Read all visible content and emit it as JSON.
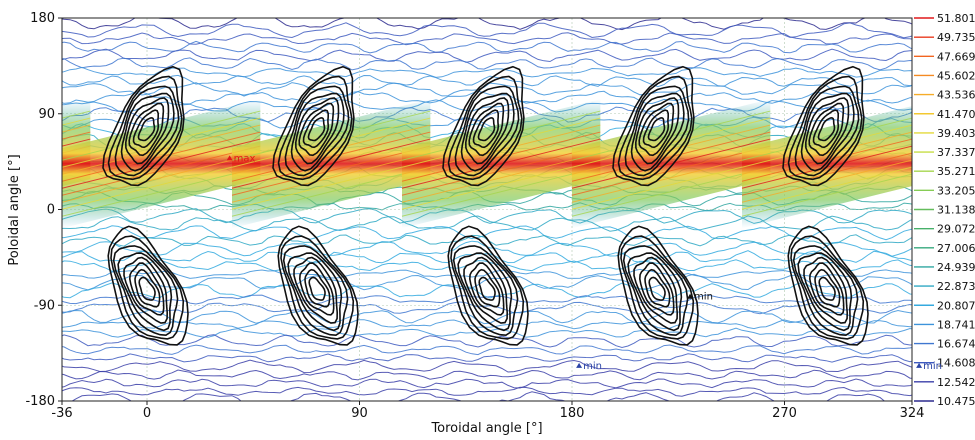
{
  "chart_data": {
    "type": "heatmap",
    "title": "",
    "xlabel": "Toroidal angle [°]",
    "ylabel": "Poloidal angle [°]",
    "xlim": [
      -36,
      324
    ],
    "ylim": [
      -180,
      180
    ],
    "x_ticks": [
      -36,
      0,
      90,
      180,
      270,
      324
    ],
    "y_ticks": [
      -180,
      -90,
      0,
      90,
      180
    ],
    "grid": true,
    "colorbar": {
      "levels": [
        51.801,
        49.735,
        47.669,
        45.602,
        43.536,
        41.47,
        39.403,
        37.337,
        35.271,
        33.205,
        31.138,
        29.072,
        27.006,
        24.939,
        22.873,
        20.807,
        18.741,
        16.674,
        14.608,
        12.542,
        10.475
      ],
      "labels": [
        "51.801",
        "49.735",
        "47.669",
        "45.602",
        "43.536",
        "41.470",
        "39.403",
        "37.337",
        "35.271",
        "33.205",
        "31.138",
        "29.072",
        "27.006",
        "24.939",
        "22.873",
        "20.807",
        "18.741",
        "16.674",
        "14.608",
        "12.542",
        "10.475"
      ],
      "colors": [
        "#e0181b",
        "#ea3a1e",
        "#f2641f",
        "#f58a22",
        "#f6ac28",
        "#f3c830",
        "#e3d93a",
        "#c6dd45",
        "#a6d64e",
        "#86cc55",
        "#64bd5d",
        "#47b06a",
        "#36a87d",
        "#2fa6a0",
        "#2ea8c4",
        "#34aadf",
        "#3d93db",
        "#3f77d0",
        "#3e5ac0",
        "#3a3ea8",
        "#2c2a8e"
      ]
    },
    "period_deg": 72,
    "ridge": {
      "x_start": -36,
      "y_start": 20,
      "slope": 0.55,
      "peak_value": 51.801
    },
    "black_contour_centers_upper": [
      [
        0,
        75
      ],
      [
        72,
        75
      ],
      [
        144,
        75
      ],
      [
        216,
        75
      ],
      [
        288,
        75
      ]
    ],
    "black_contour_centers_lower": [
      [
        0,
        -75
      ],
      [
        72,
        -75
      ],
      [
        144,
        -75
      ],
      [
        216,
        -75
      ],
      [
        288,
        -75
      ]
    ],
    "annotations": [
      {
        "text": "max",
        "x": 35,
        "y": 48,
        "color": "#e0181b"
      },
      {
        "text": "min",
        "x": 183,
        "y": -147,
        "color": "#2a44a6"
      },
      {
        "text": "min",
        "x": 327,
        "y": -147,
        "color": "#2a44a6"
      },
      {
        "text": "min",
        "x": 230,
        "y": -82,
        "color": "#111111"
      }
    ]
  }
}
